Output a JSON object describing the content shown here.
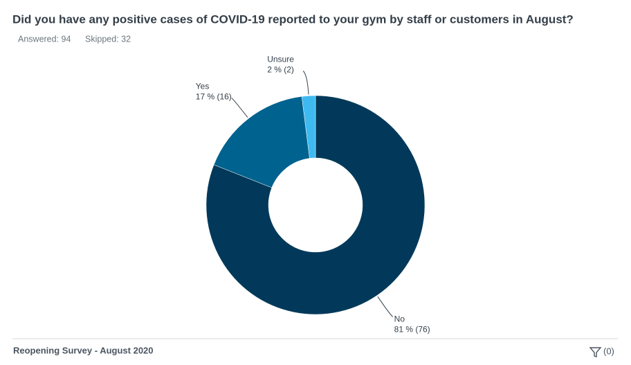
{
  "chart_data": {
    "type": "donut",
    "title": "Did you have any positive cases of COVID-19 reported to your gym by staff or customers in August?",
    "stats": [
      "Answered: 94",
      "Skipped: 32"
    ],
    "categories": [
      "No",
      "Yes",
      "Unsure"
    ],
    "values": [
      81,
      17,
      2
    ],
    "value_labels": [
      "81 % (76)",
      "17 % (16)",
      "2 % (2)"
    ],
    "colors": [
      "#02395a",
      "#00628f",
      "#3fbaf0"
    ]
  },
  "footer": {
    "survey": "Reopening Survey - August 2020",
    "filter_count": "(0)"
  }
}
